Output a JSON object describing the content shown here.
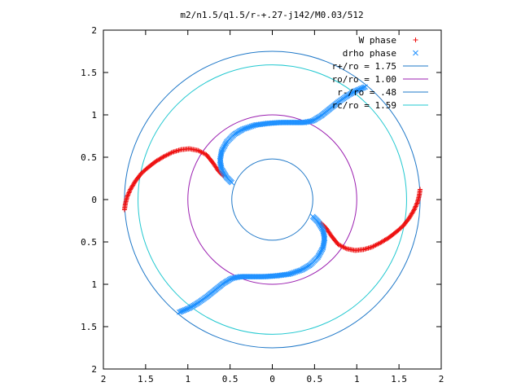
{
  "chart_data": {
    "type": "scatter",
    "title": "m2/n1.5/q1.5/r-+.27-j142/M0.03/512",
    "xlabel": "",
    "ylabel": "",
    "xlim": [
      -2,
      2
    ],
    "ylim": [
      -2,
      2
    ],
    "x_tick_values": [
      -2,
      -1.5,
      -1,
      -0.5,
      0,
      0.5,
      1,
      1.5,
      2
    ],
    "x_tick_labels": [
      "2",
      "1.5",
      "1",
      "0.5",
      "0",
      "0.5",
      "1",
      "1.5",
      "2"
    ],
    "y_tick_values": [
      2,
      1.5,
      1,
      0.5,
      0,
      -0.5,
      -1,
      -1.5,
      -2
    ],
    "y_tick_labels": [
      "2",
      "1.5",
      "1",
      "0.5",
      "0",
      "0.5",
      "1",
      "1.5",
      "2"
    ],
    "grid": false,
    "legend_position": "top-right",
    "circles": [
      {
        "name": "r+/ro = 1.75",
        "radius": 1.75,
        "color": "#1f78c8"
      },
      {
        "name": "ro/ro = 1.00",
        "radius": 1.0,
        "color": "#9b1fb0"
      },
      {
        "name": "r-/ro = .48",
        "radius": 0.48,
        "color": "#1f78c8"
      },
      {
        "name": "rc/ro = 1.59",
        "radius": 1.59,
        "color": "#22c8d0"
      }
    ],
    "series": [
      {
        "name": "W phase",
        "marker": "plus",
        "color": "#ee1111",
        "arms": [
          [
            [
              -1.75,
              -0.12
            ],
            [
              -1.74,
              -0.05
            ],
            [
              -1.72,
              0.03
            ],
            [
              -1.68,
              0.12
            ],
            [
              -1.62,
              0.22
            ],
            [
              -1.55,
              0.31
            ],
            [
              -1.47,
              0.38
            ],
            [
              -1.38,
              0.45
            ],
            [
              -1.28,
              0.51
            ],
            [
              -1.18,
              0.56
            ],
            [
              -1.08,
              0.59
            ],
            [
              -0.98,
              0.6
            ],
            [
              -0.88,
              0.58
            ],
            [
              -0.78,
              0.53
            ],
            [
              -0.7,
              0.43
            ],
            [
              -0.64,
              0.34
            ],
            [
              -0.58,
              0.28
            ]
          ],
          [
            [
              1.75,
              0.12
            ],
            [
              1.74,
              0.05
            ],
            [
              1.72,
              -0.03
            ],
            [
              1.68,
              -0.12
            ],
            [
              1.62,
              -0.22
            ],
            [
              1.55,
              -0.31
            ],
            [
              1.47,
              -0.38
            ],
            [
              1.38,
              -0.45
            ],
            [
              1.28,
              -0.51
            ],
            [
              1.18,
              -0.56
            ],
            [
              1.08,
              -0.59
            ],
            [
              0.98,
              -0.6
            ],
            [
              0.88,
              -0.58
            ],
            [
              0.78,
              -0.53
            ],
            [
              0.7,
              -0.43
            ],
            [
              0.64,
              -0.34
            ],
            [
              0.58,
              -0.28
            ]
          ]
        ]
      },
      {
        "name": "drho phase",
        "marker": "cross",
        "color": "#1e90ff",
        "arms": [
          [
            [
              -0.48,
              0.2
            ],
            [
              -0.54,
              0.26
            ],
            [
              -0.6,
              0.36
            ],
            [
              -0.62,
              0.46
            ],
            [
              -0.6,
              0.57
            ],
            [
              -0.54,
              0.68
            ],
            [
              -0.45,
              0.77
            ],
            [
              -0.35,
              0.83
            ],
            [
              -0.2,
              0.88
            ],
            [
              -0.05,
              0.9
            ],
            [
              0.1,
              0.91
            ],
            [
              0.25,
              0.91
            ],
            [
              0.38,
              0.91
            ],
            [
              0.48,
              0.93
            ],
            [
              0.58,
              0.99
            ],
            [
              0.68,
              1.07
            ],
            [
              0.78,
              1.15
            ],
            [
              0.88,
              1.22
            ],
            [
              0.98,
              1.28
            ],
            [
              1.1,
              1.33
            ]
          ],
          [
            [
              0.48,
              -0.2
            ],
            [
              0.54,
              -0.26
            ],
            [
              0.6,
              -0.36
            ],
            [
              0.62,
              -0.46
            ],
            [
              0.6,
              -0.57
            ],
            [
              0.54,
              -0.68
            ],
            [
              0.45,
              -0.77
            ],
            [
              0.35,
              -0.83
            ],
            [
              0.2,
              -0.88
            ],
            [
              0.05,
              -0.9
            ],
            [
              -0.1,
              -0.91
            ],
            [
              -0.25,
              -0.91
            ],
            [
              -0.38,
              -0.91
            ],
            [
              -0.48,
              -0.93
            ],
            [
              -0.58,
              -0.99
            ],
            [
              -0.68,
              -1.07
            ],
            [
              -0.78,
              -1.15
            ],
            [
              -0.88,
              -1.22
            ],
            [
              -0.98,
              -1.28
            ],
            [
              -1.1,
              -1.33
            ]
          ]
        ]
      }
    ]
  }
}
